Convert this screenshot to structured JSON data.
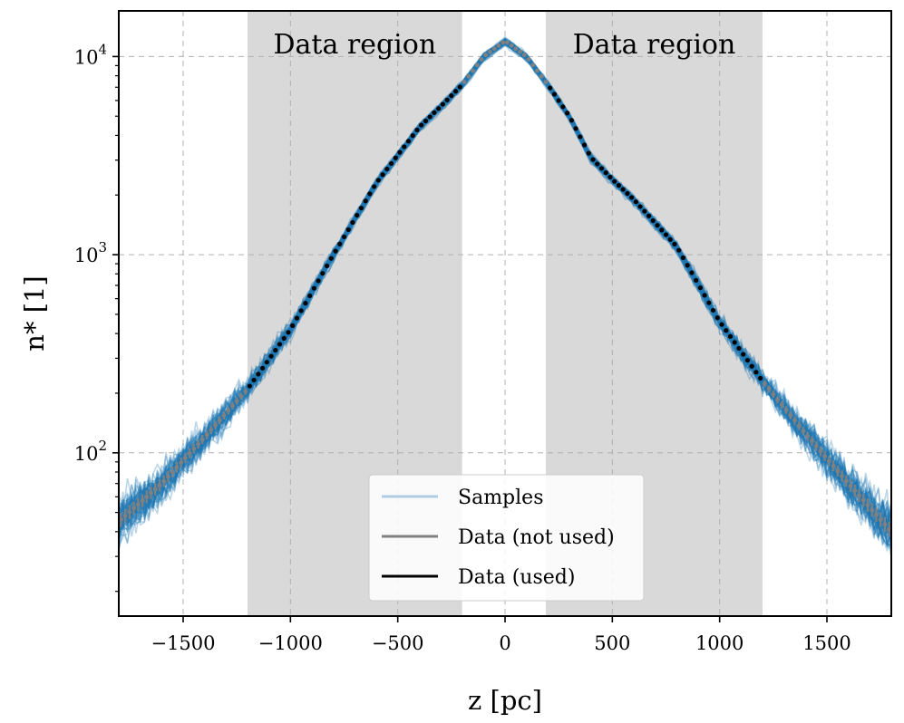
{
  "chart_data": {
    "type": "line",
    "title": "",
    "xlabel": "z [pc]",
    "ylabel": "n* [1]",
    "xscale": "linear",
    "yscale": "log",
    "xlim": [
      -1800,
      1800
    ],
    "ylim": [
      15,
      17000
    ],
    "grid": true,
    "x_ticks": [
      {
        "value": -1500,
        "label": "−1500"
      },
      {
        "value": -1000,
        "label": "−1000"
      },
      {
        "value": -500,
        "label": "−500"
      },
      {
        "value": 0,
        "label": "0"
      },
      {
        "value": 500,
        "label": "500"
      },
      {
        "value": 1000,
        "label": "1000"
      },
      {
        "value": 1500,
        "label": "1500"
      }
    ],
    "y_ticks": [
      {
        "value": 100,
        "base": "10",
        "exp": "2"
      },
      {
        "value": 1000,
        "base": "10",
        "exp": "3"
      },
      {
        "value": 10000,
        "base": "10",
        "exp": "4"
      }
    ],
    "shaded_regions": [
      {
        "x": [
          -1200,
          -200
        ],
        "label": "Data region"
      },
      {
        "x": [
          190,
          1200
        ],
        "label": "Data region"
      }
    ],
    "profile": {
      "z": [
        -1800,
        -1600,
        -1400,
        -1200,
        -1000,
        -800,
        -600,
        -400,
        -300,
        -200,
        -100,
        0,
        100,
        200,
        300,
        400,
        500,
        600,
        800,
        1000,
        1200,
        1400,
        1600,
        1800
      ],
      "n": [
        45,
        70,
        120,
        210,
        420,
        1000,
        2300,
        4400,
        5600,
        7200,
        10000,
        12000,
        10000,
        7200,
        5000,
        3100,
        2400,
        1900,
        1100,
        460,
        230,
        125,
        70,
        40
      ]
    },
    "data_step": 20,
    "used_ranges": [
      [
        -1200,
        -200
      ],
      [
        200,
        1200
      ]
    ],
    "n_samples": 60,
    "series": [
      {
        "name": "Samples",
        "color": "#1f77b4"
      },
      {
        "name": "Data (not used)",
        "color": "#808080"
      },
      {
        "name": "Data (used)",
        "color": "#000000"
      }
    ],
    "legend_position": "lower center"
  }
}
